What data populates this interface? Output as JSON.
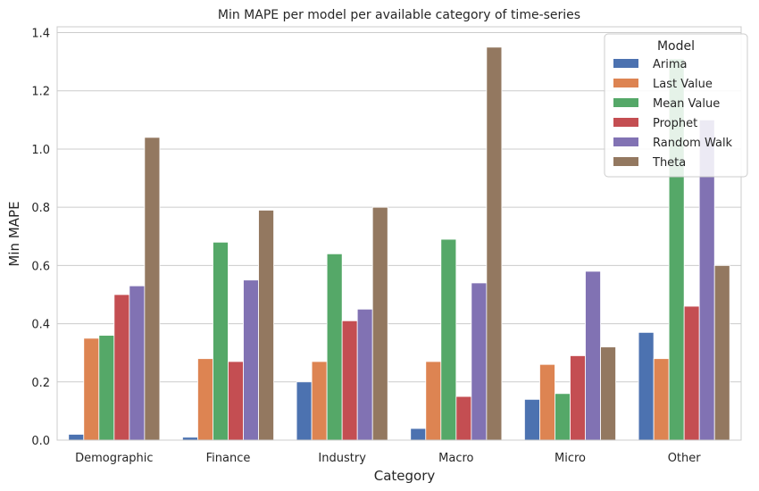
{
  "chart_data": {
    "type": "bar",
    "title": "Min MAPE per model per available category of time-series",
    "xlabel": "Category",
    "ylabel": "Min MAPE",
    "categories": [
      "Demographic",
      "Finance",
      "Industry",
      "Macro",
      "Micro",
      "Other"
    ],
    "ylim": [
      0,
      1.42
    ],
    "yticks": [
      "0.0",
      "0.2",
      "0.4",
      "0.6",
      "0.8",
      "1.0",
      "1.2",
      "1.4"
    ],
    "grid": true,
    "legend": {
      "title": "Model",
      "placement": "top-right"
    },
    "series": [
      {
        "name": "Arima",
        "color": "#4c72b0",
        "values": [
          0.02,
          0.01,
          0.2,
          0.04,
          0.14,
          0.37
        ]
      },
      {
        "name": "Last Value",
        "color": "#dd8452",
        "values": [
          0.35,
          0.28,
          0.27,
          0.27,
          0.26,
          0.28
        ]
      },
      {
        "name": "Mean Value",
        "color": "#55a868",
        "values": [
          0.36,
          0.68,
          0.64,
          0.69,
          0.16,
          1.31
        ]
      },
      {
        "name": "Prophet",
        "color": "#c44e52",
        "values": [
          0.5,
          0.27,
          0.41,
          0.15,
          0.29,
          0.46
        ]
      },
      {
        "name": "Random Walk",
        "color": "#8172b3",
        "values": [
          0.53,
          0.55,
          0.45,
          0.54,
          0.58,
          1.1
        ]
      },
      {
        "name": "Theta",
        "color": "#937860",
        "values": [
          1.04,
          0.79,
          0.8,
          1.35,
          0.32,
          0.6
        ]
      }
    ]
  }
}
